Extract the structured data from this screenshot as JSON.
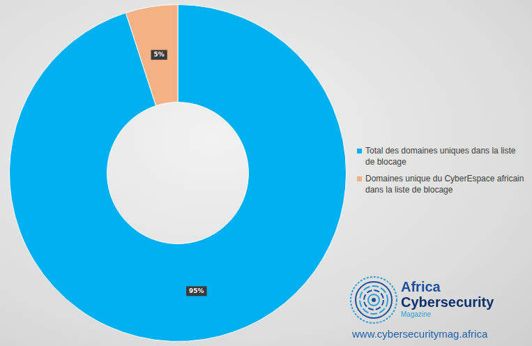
{
  "chart_data": {
    "type": "doughnut",
    "categories": [
      "Total des domaines uniques dans la liste de blocage",
      "Domaines unique du CyberEspace africain dans la liste de blocage"
    ],
    "values": [
      95,
      5
    ],
    "value_labels": [
      "95%",
      "5%"
    ],
    "colors": [
      "#00b0f0",
      "#f4b183"
    ],
    "data_labels": true,
    "legend": "right",
    "annotations": [
      "Africa",
      "Cybersecurity",
      "Magazine",
      "www.cybersecuritymag.africa"
    ]
  }
}
